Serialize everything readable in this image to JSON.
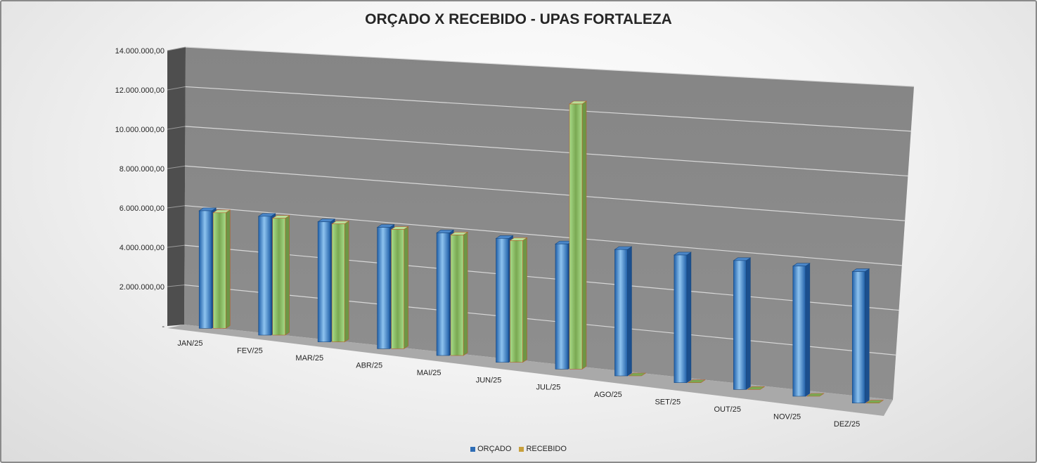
{
  "chart_data": {
    "type": "bar",
    "title": "ORÇADO X RECEBIDO - UPAS FORTALEZA",
    "categories": [
      "JAN/25",
      "FEV/25",
      "MAR/25",
      "ABR/25",
      "MAI/25",
      "JUN/25",
      "JUL/25",
      "AGO/25",
      "SET/25",
      "OUT/25",
      "NOV/25",
      "DEZ/25"
    ],
    "series": [
      {
        "name": "ORÇADO",
        "color": "#2f6db5",
        "values": [
          5900000,
          5900000,
          5900000,
          5900000,
          5900000,
          5900000,
          5900000,
          5900000,
          5900000,
          5900000,
          5900000,
          5900000
        ]
      },
      {
        "name": "RECEBIDO",
        "color": "#8fc46b",
        "values": [
          5800000,
          5800000,
          5800000,
          5800000,
          5800000,
          5800000,
          12500000,
          0,
          0,
          0,
          0,
          0
        ]
      }
    ],
    "yticks": [
      "-",
      "2.000.000,00",
      "4.000.000,00",
      "6.000.000,00",
      "8.000.000,00",
      "10.000.000,00",
      "12.000.000,00",
      "14.000.000,00"
    ],
    "ylim": [
      0,
      14000000
    ],
    "grid": true,
    "legend": "bottom"
  }
}
